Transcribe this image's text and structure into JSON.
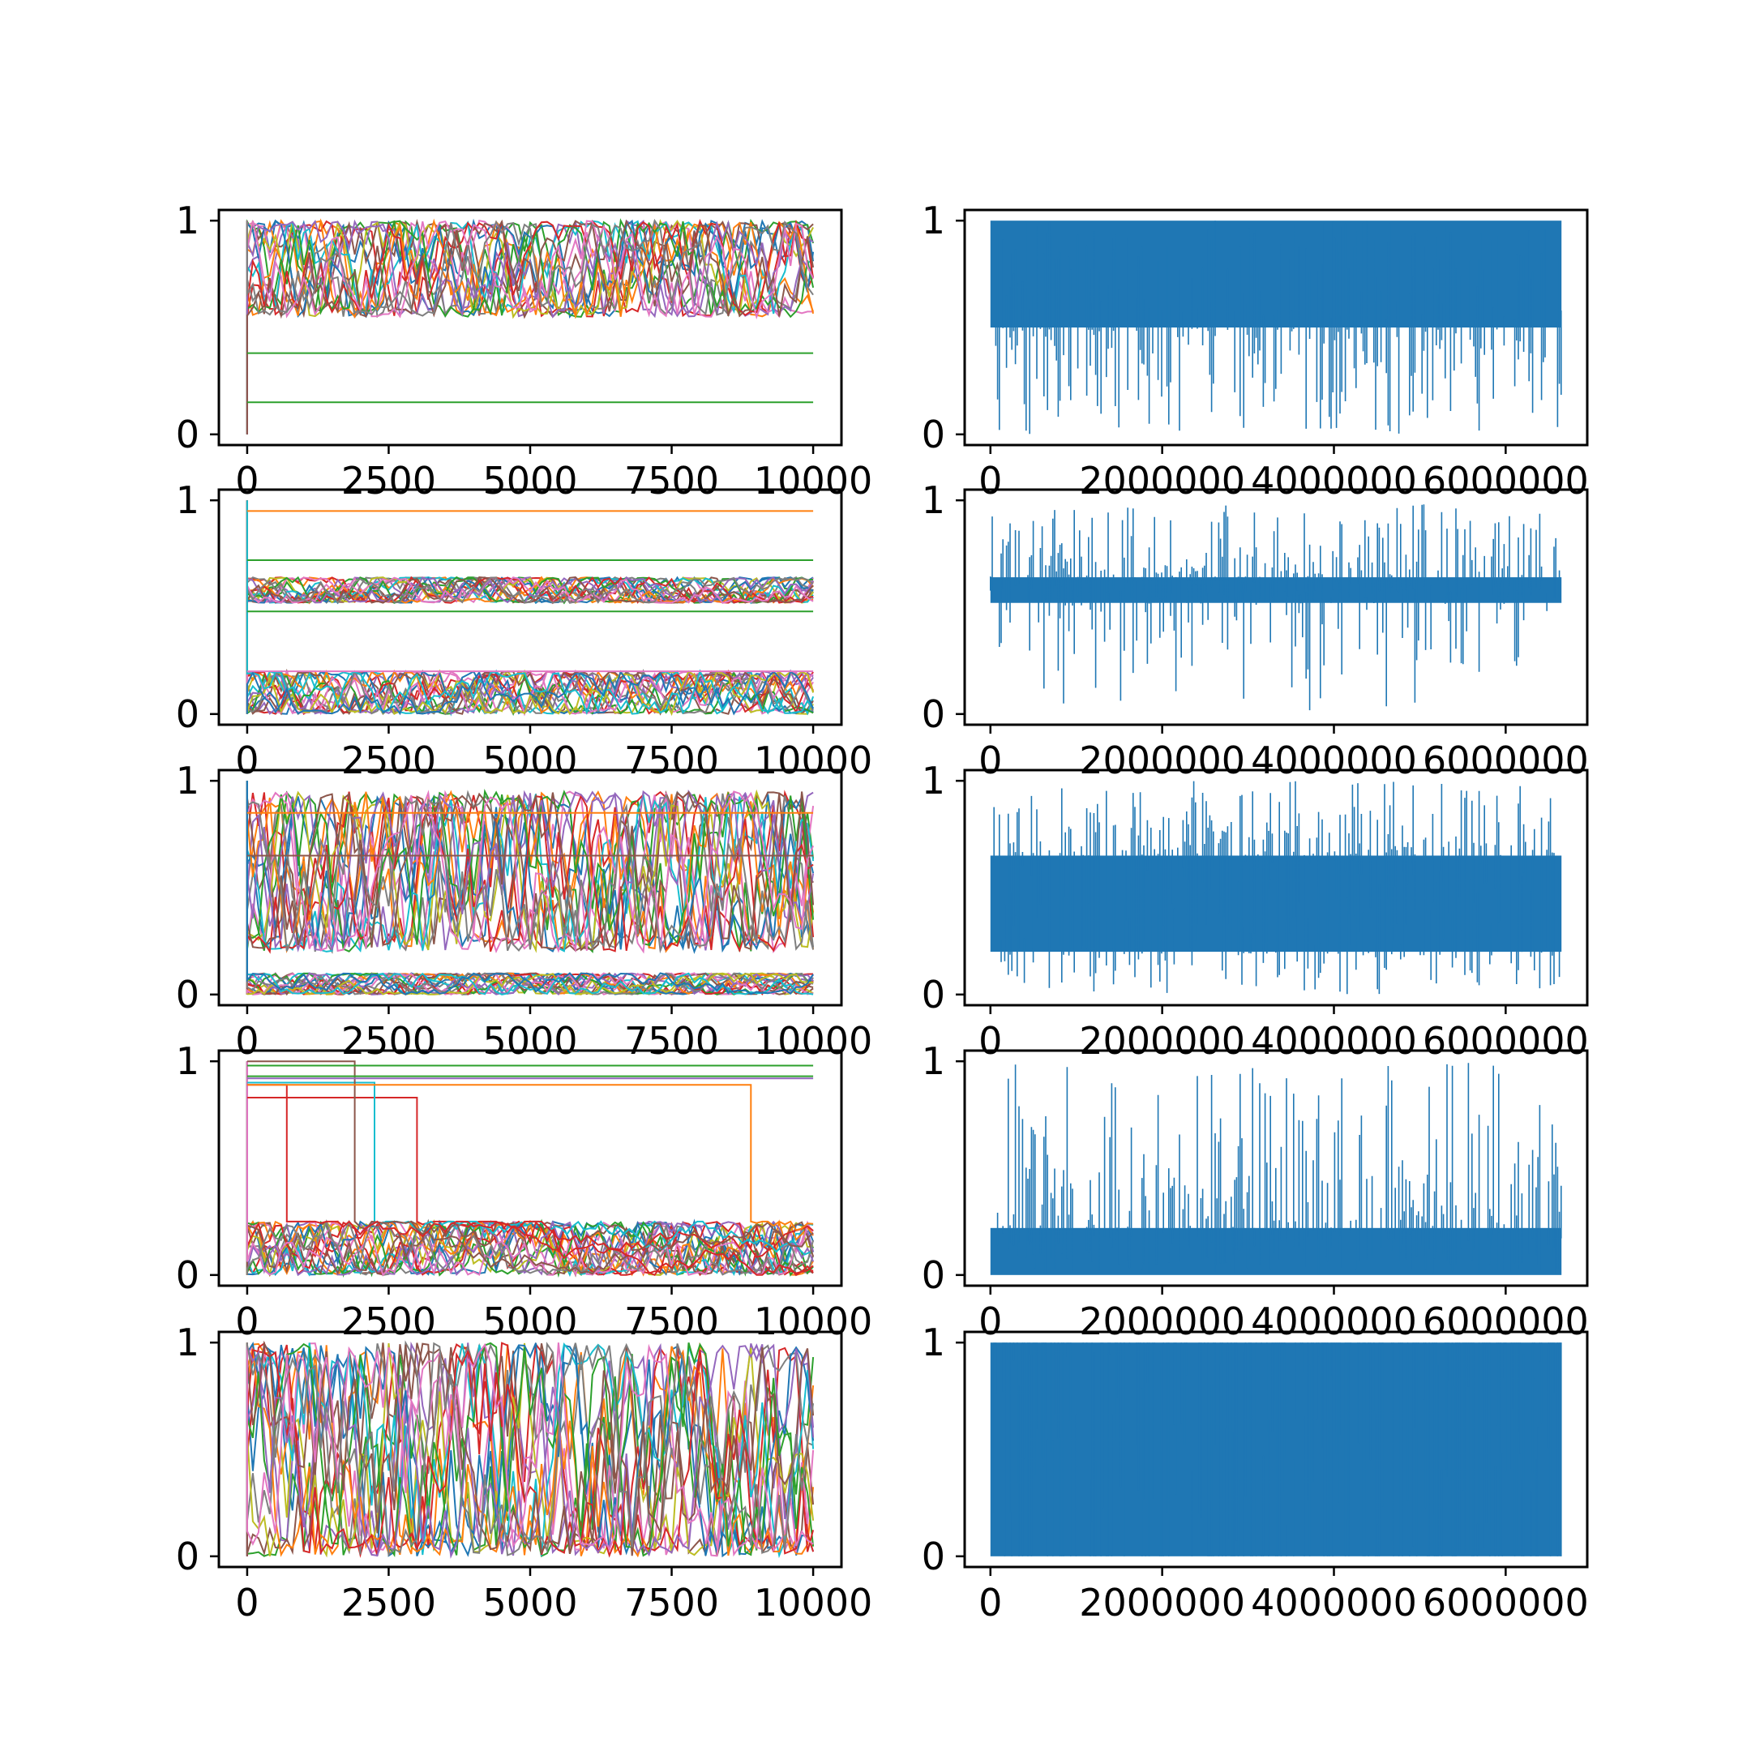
{
  "chart_data": {
    "type": "line",
    "layout": "5 rows x 2 columns",
    "panels": [
      {
        "id": "row1-left",
        "kind": "multi",
        "xlim": [
          -500,
          10500
        ],
        "ylim": [
          -0.05,
          1.05
        ],
        "xticks": [
          0,
          2500,
          5000,
          7500,
          10000
        ],
        "xtick_labels": [
          "0",
          "2500",
          "5000",
          "7500",
          "10000"
        ],
        "yticks": [
          0,
          1
        ],
        "ytick_labels": [
          "0",
          "1"
        ],
        "bands": [
          [
            0.55,
            1.0
          ]
        ],
        "descents": [],
        "flat_lines": [
          {
            "y": 0.38,
            "color": "#2ca02c"
          },
          {
            "y": 0.15,
            "color": "#2ca02c"
          }
        ]
      },
      {
        "id": "row1-right",
        "kind": "single",
        "xlim": [
          -300000,
          6950000
        ],
        "ylim": [
          -0.05,
          1.05
        ],
        "xticks": [
          0,
          2000000,
          4000000,
          6000000
        ],
        "xtick_labels": [
          "0",
          "2000000",
          "4000000",
          "6000000"
        ],
        "yticks": [
          0,
          1
        ],
        "ytick_labels": [
          "0",
          "1"
        ],
        "x_end": 6650000,
        "core": [
          0.5,
          1.0
        ],
        "spike_min": 0.0,
        "spike_max": 1.0,
        "spike_dir": "down"
      },
      {
        "id": "row2-left",
        "kind": "multi",
        "xlim": [
          -500,
          10500
        ],
        "ylim": [
          -0.05,
          1.05
        ],
        "xticks": [
          0,
          2500,
          5000,
          7500,
          10000
        ],
        "xtick_labels": [
          "0",
          "2500",
          "5000",
          "7500",
          "10000"
        ],
        "yticks": [
          0,
          1
        ],
        "ytick_labels": [
          "0",
          "1"
        ],
        "bands": [
          [
            0.52,
            0.64
          ],
          [
            0.0,
            0.2
          ]
        ],
        "descents": [],
        "flat_lines": [
          {
            "y": 0.95,
            "color": "#ff7f0e"
          },
          {
            "y": 0.72,
            "color": "#2ca02c"
          },
          {
            "y": 0.48,
            "color": "#2ca02c"
          },
          {
            "y": 0.2,
            "color": "#e377c2"
          }
        ]
      },
      {
        "id": "row2-right",
        "kind": "single",
        "xlim": [
          -300000,
          6950000
        ],
        "ylim": [
          -0.05,
          1.05
        ],
        "xticks": [
          0,
          2000000,
          4000000,
          6000000
        ],
        "xtick_labels": [
          "0",
          "2000000",
          "4000000",
          "6000000"
        ],
        "yticks": [
          0,
          1
        ],
        "ytick_labels": [
          "0",
          "1"
        ],
        "x_end": 6650000,
        "core": [
          0.52,
          0.64
        ],
        "spike_min": 0.0,
        "spike_max": 1.0,
        "spike_dir": "both"
      },
      {
        "id": "row3-left",
        "kind": "multi",
        "xlim": [
          -500,
          10500
        ],
        "ylim": [
          -0.05,
          1.05
        ],
        "xticks": [
          0,
          2500,
          5000,
          7500,
          10000
        ],
        "xtick_labels": [
          "0",
          "2500",
          "5000",
          "7500",
          "10000"
        ],
        "yticks": [
          0,
          1
        ],
        "ytick_labels": [
          "0",
          "1"
        ],
        "bands": [
          [
            0.2,
            0.95
          ],
          [
            0.0,
            0.1
          ]
        ],
        "descents": [],
        "flat_lines": [
          {
            "y": 0.65,
            "color": "#8c564b"
          },
          {
            "y": 0.85,
            "color": "#ff7f0e"
          }
        ]
      },
      {
        "id": "row3-right",
        "kind": "single",
        "xlim": [
          -300000,
          6950000
        ],
        "ylim": [
          -0.05,
          1.05
        ],
        "xticks": [
          0,
          2000000,
          4000000,
          6000000
        ],
        "xtick_labels": [
          "0",
          "2000000",
          "4000000",
          "6000000"
        ],
        "yticks": [
          0,
          1
        ],
        "ytick_labels": [
          "0",
          "1"
        ],
        "x_end": 6650000,
        "core": [
          0.2,
          0.65
        ],
        "spike_min": 0.0,
        "spike_max": 1.0,
        "spike_dir": "both"
      },
      {
        "id": "row4-left",
        "kind": "multi",
        "xlim": [
          -500,
          10500
        ],
        "ylim": [
          -0.05,
          1.05
        ],
        "xticks": [
          0,
          2500,
          5000,
          7500,
          10000
        ],
        "xtick_labels": [
          "0",
          "2500",
          "5000",
          "7500",
          "10000"
        ],
        "yticks": [
          0,
          1
        ],
        "ytick_labels": [
          "0",
          "1"
        ],
        "bands": [
          [
            0.0,
            0.25
          ]
        ],
        "descents": [
          {
            "y": 0.83,
            "x_drop": 3000,
            "color": "#d62728"
          },
          {
            "y": 0.9,
            "x_drop": 2250,
            "color": "#17becf"
          },
          {
            "y": 1.0,
            "x_drop": 1900,
            "color": "#8c564b"
          },
          {
            "y": 0.89,
            "x_drop": 700,
            "color": "#d62728"
          },
          {
            "y": 0.89,
            "x_drop": 8900,
            "color": "#ff7f0e"
          }
        ],
        "flat_lines": [
          {
            "y": 0.98,
            "color": "#2ca02c"
          },
          {
            "y": 0.93,
            "color": "#2ca02c"
          },
          {
            "y": 0.92,
            "color": "#9467bd"
          }
        ]
      },
      {
        "id": "row4-right",
        "kind": "single",
        "xlim": [
          -300000,
          6950000
        ],
        "ylim": [
          -0.05,
          1.05
        ],
        "xticks": [
          0,
          2000000,
          4000000,
          6000000
        ],
        "xtick_labels": [
          "0",
          "2000000",
          "4000000",
          "6000000"
        ],
        "yticks": [
          0,
          1
        ],
        "ytick_labels": [
          "0",
          "1"
        ],
        "x_end": 6650000,
        "core": [
          0.0,
          0.22
        ],
        "spike_min": 0.0,
        "spike_max": 1.0,
        "spike_dir": "up"
      },
      {
        "id": "row5-left",
        "kind": "multi",
        "xlim": [
          -500,
          10500
        ],
        "ylim": [
          -0.05,
          1.05
        ],
        "xticks": [
          0,
          2500,
          5000,
          7500,
          10000
        ],
        "xtick_labels": [
          "0",
          "2500",
          "5000",
          "7500",
          "10000"
        ],
        "yticks": [
          0,
          1
        ],
        "ytick_labels": [
          "0",
          "1"
        ],
        "bands": [
          [
            0.0,
            1.0
          ]
        ],
        "descents": [],
        "flat_lines": []
      },
      {
        "id": "row5-right",
        "kind": "single",
        "xlim": [
          -300000,
          6950000
        ],
        "ylim": [
          -0.05,
          1.05
        ],
        "xticks": [
          0,
          2000000,
          4000000,
          6000000
        ],
        "xtick_labels": [
          "0",
          "2000000",
          "4000000",
          "6000000"
        ],
        "yticks": [
          0,
          1
        ],
        "ytick_labels": [
          "0",
          "1"
        ],
        "x_end": 6650000,
        "core": [
          0.0,
          1.0
        ],
        "spike_min": 0.0,
        "spike_max": 1.0,
        "spike_dir": "both"
      }
    ],
    "colors": {
      "single_series": "#1f77b4",
      "palette": [
        "#1f77b4",
        "#ff7f0e",
        "#2ca02c",
        "#d62728",
        "#9467bd",
        "#8c564b",
        "#e377c2",
        "#7f7f7f",
        "#bcbd22",
        "#17becf"
      ]
    }
  }
}
